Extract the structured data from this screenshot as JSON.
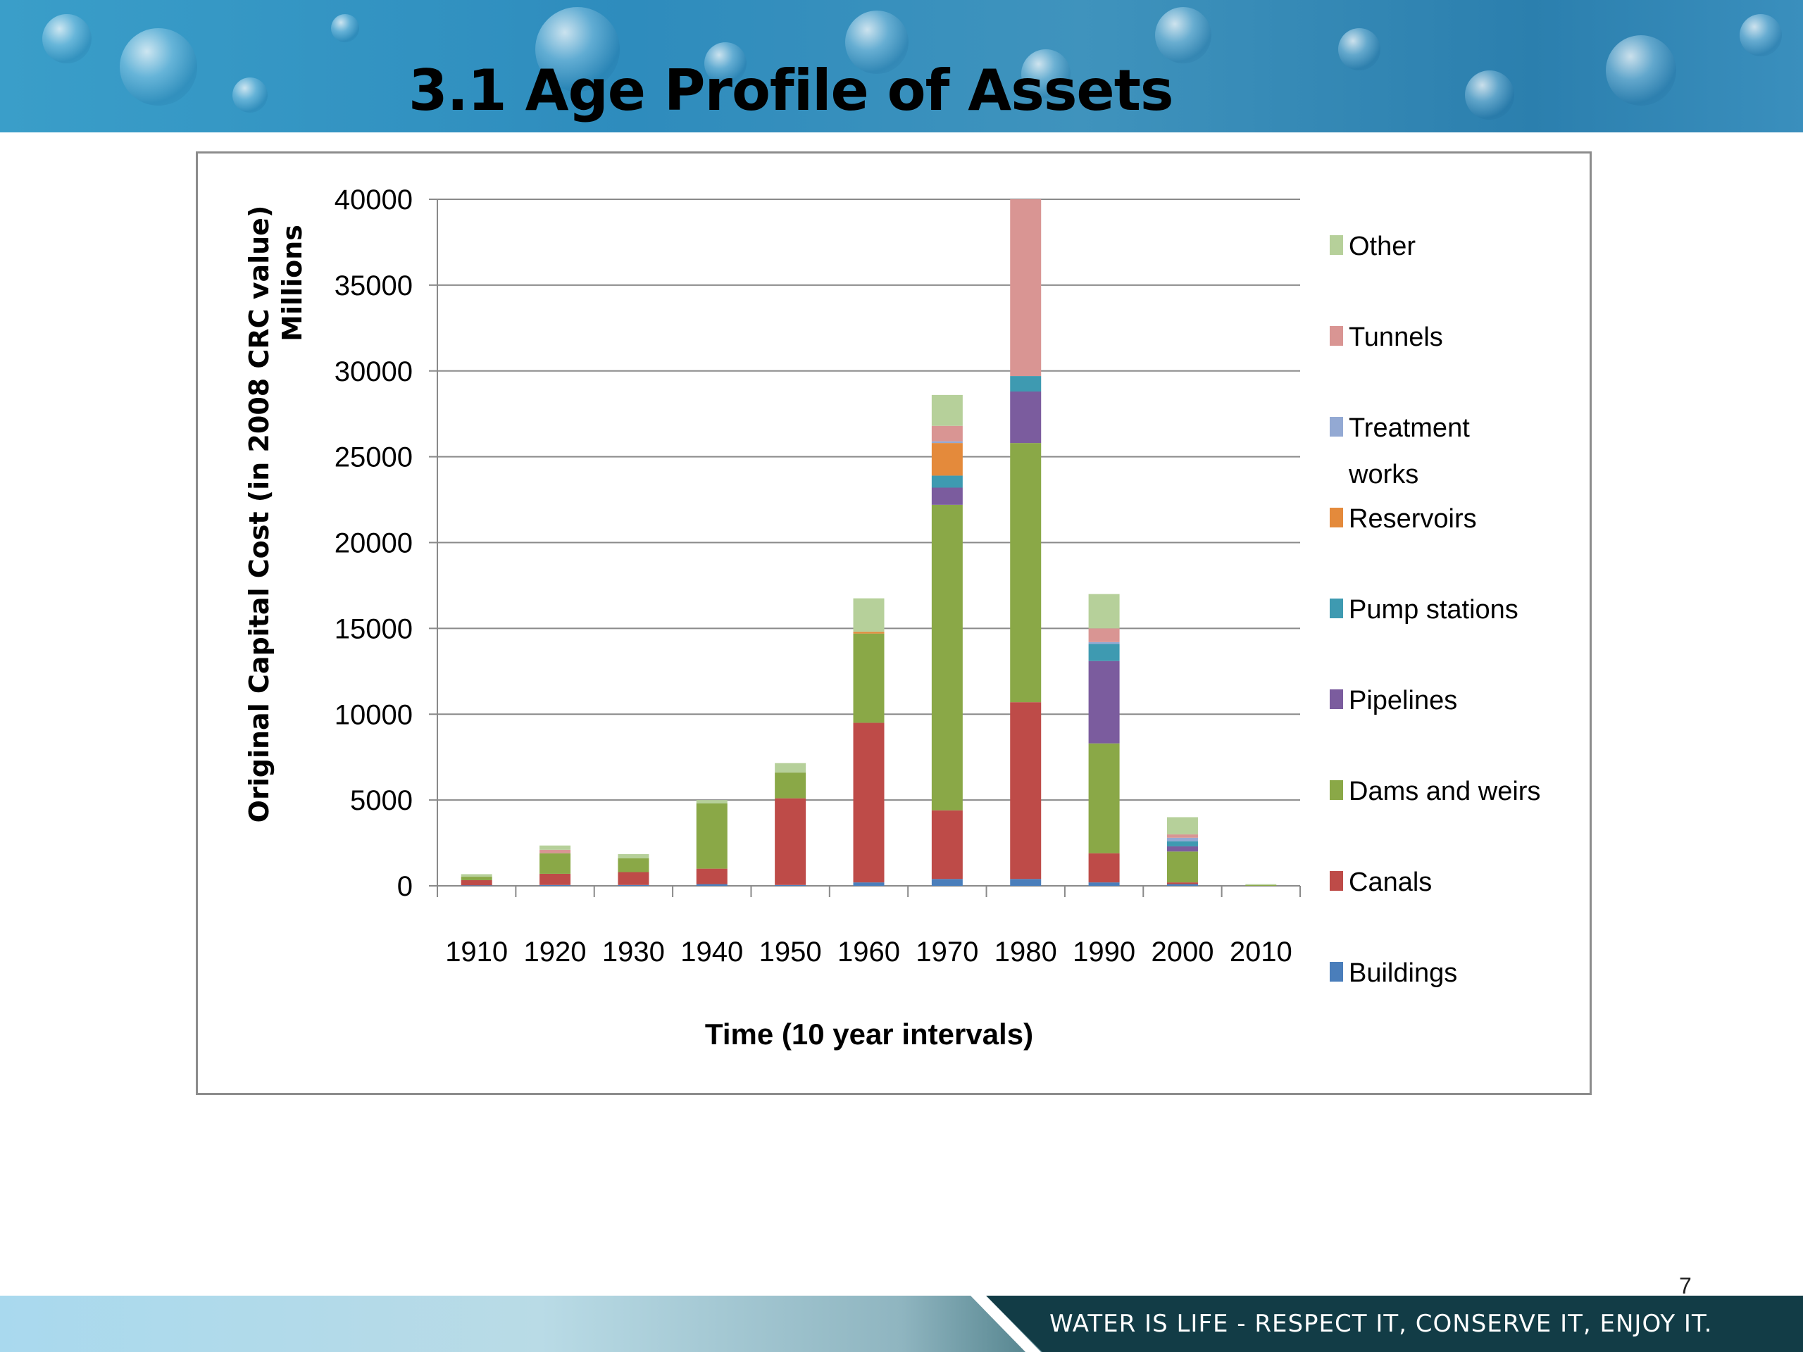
{
  "slide": {
    "title": "3.1 Age Profile of Assets",
    "page_number": "7",
    "footer_slogan": "WATER IS LIFE - RESPECT IT, CONSERVE IT, ENJOY IT."
  },
  "chart_data": {
    "type": "bar",
    "stacked": true,
    "title": "",
    "xlabel": "Time (10 year intervals)",
    "ylabel": "Original Capital Cost (in 2008 CRC value)",
    "ylabel_unit": "Millions",
    "ylim": [
      0,
      40000
    ],
    "yticks": [
      0,
      5000,
      10000,
      15000,
      20000,
      25000,
      30000,
      35000,
      40000
    ],
    "grid": true,
    "legend_position": "right",
    "categories": [
      "1910",
      "1920",
      "1930",
      "1940",
      "1950",
      "1960",
      "1970",
      "1980",
      "1990",
      "2000",
      "2010"
    ],
    "series": [
      {
        "name": "Buildings",
        "color": "#4a7ebb",
        "values": [
          30,
          50,
          50,
          100,
          50,
          200,
          400,
          400,
          200,
          100,
          0
        ]
      },
      {
        "name": "Canals",
        "color": "#be4b48",
        "values": [
          300,
          650,
          750,
          900,
          5050,
          9300,
          4000,
          10300,
          1700,
          100,
          0
        ]
      },
      {
        "name": "Dams and weirs",
        "color": "#8aa847",
        "values": [
          200,
          1200,
          800,
          3800,
          1500,
          5200,
          17800,
          15100,
          6400,
          1800,
          50
        ]
      },
      {
        "name": "Pipelines",
        "color": "#7b5c9e",
        "values": [
          0,
          0,
          0,
          0,
          0,
          0,
          1000,
          3000,
          4800,
          300,
          0
        ]
      },
      {
        "name": "Pump stations",
        "color": "#3e9ab1",
        "values": [
          0,
          0,
          0,
          0,
          0,
          0,
          700,
          900,
          1000,
          300,
          0
        ]
      },
      {
        "name": "Reservoirs",
        "color": "#e48a3b",
        "values": [
          0,
          0,
          0,
          0,
          0,
          100,
          1900,
          0,
          0,
          0,
          0
        ]
      },
      {
        "name": "Treatment works",
        "color": "#93a9d3",
        "values": [
          0,
          0,
          0,
          0,
          0,
          0,
          100,
          0,
          100,
          200,
          0
        ]
      },
      {
        "name": "Tunnels",
        "color": "#d99593",
        "values": [
          0,
          200,
          0,
          0,
          0,
          0,
          900,
          10300,
          800,
          200,
          0
        ]
      },
      {
        "name": "Other",
        "color": "#b6d09a",
        "values": [
          150,
          250,
          250,
          200,
          550,
          1950,
          1800,
          0,
          2000,
          1000,
          50
        ]
      }
    ]
  }
}
